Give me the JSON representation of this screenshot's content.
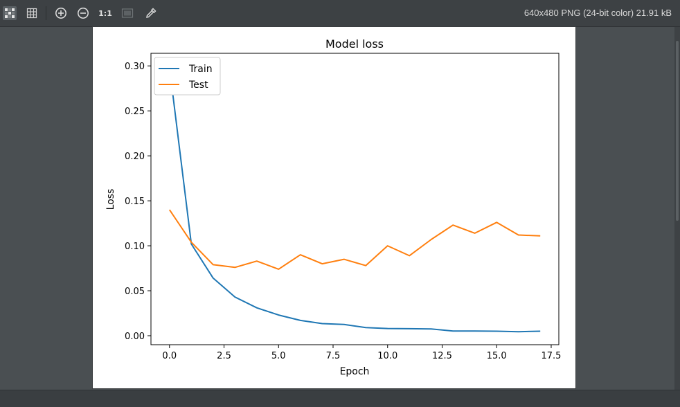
{
  "toolbar": {
    "buttons": [
      {
        "name": "checkerboard-icon"
      },
      {
        "name": "grid-icon"
      },
      {
        "name": "zoom-in-icon"
      },
      {
        "name": "zoom-out-icon"
      },
      {
        "name": "actual-size-label",
        "label": "1:1"
      },
      {
        "name": "fit-window-icon"
      },
      {
        "name": "color-picker-icon"
      }
    ],
    "status_text": "640x480 PNG (24-bit color) 21.91 kB"
  },
  "chart_data": {
    "type": "line",
    "title": "Model loss",
    "xlabel": "Epoch",
    "ylabel": "Loss",
    "xlim": [
      -0.85,
      17.85
    ],
    "ylim": [
      -0.01,
      0.314
    ],
    "xticks": [
      "0.0",
      "2.5",
      "5.0",
      "7.5",
      "10.0",
      "12.5",
      "15.0",
      "17.5"
    ],
    "xtick_values": [
      0,
      2.5,
      5,
      7.5,
      10,
      12.5,
      15,
      17.5
    ],
    "yticks": [
      "0.00",
      "0.05",
      "0.10",
      "0.15",
      "0.20",
      "0.25",
      "0.30"
    ],
    "ytick_values": [
      0,
      0.05,
      0.1,
      0.15,
      0.2,
      0.25,
      0.3
    ],
    "legend_position": "top-left",
    "grid": false,
    "x": [
      0,
      1,
      2,
      3,
      4,
      5,
      6,
      7,
      8,
      9,
      10,
      11,
      12,
      13,
      14,
      15,
      16,
      17
    ],
    "series": [
      {
        "name": "Train",
        "color": "#1f77b4",
        "values": [
          0.298,
          0.102,
          0.064,
          0.043,
          0.031,
          0.023,
          0.017,
          0.0135,
          0.0125,
          0.009,
          0.008,
          0.0078,
          0.0075,
          0.0052,
          0.0052,
          0.005,
          0.0045,
          0.005
        ]
      },
      {
        "name": "Test",
        "color": "#ff7f0e",
        "values": [
          0.14,
          0.104,
          0.079,
          0.076,
          0.083,
          0.074,
          0.09,
          0.08,
          0.085,
          0.078,
          0.1,
          0.089,
          0.107,
          0.123,
          0.114,
          0.126,
          0.112,
          0.111
        ]
      }
    ]
  }
}
